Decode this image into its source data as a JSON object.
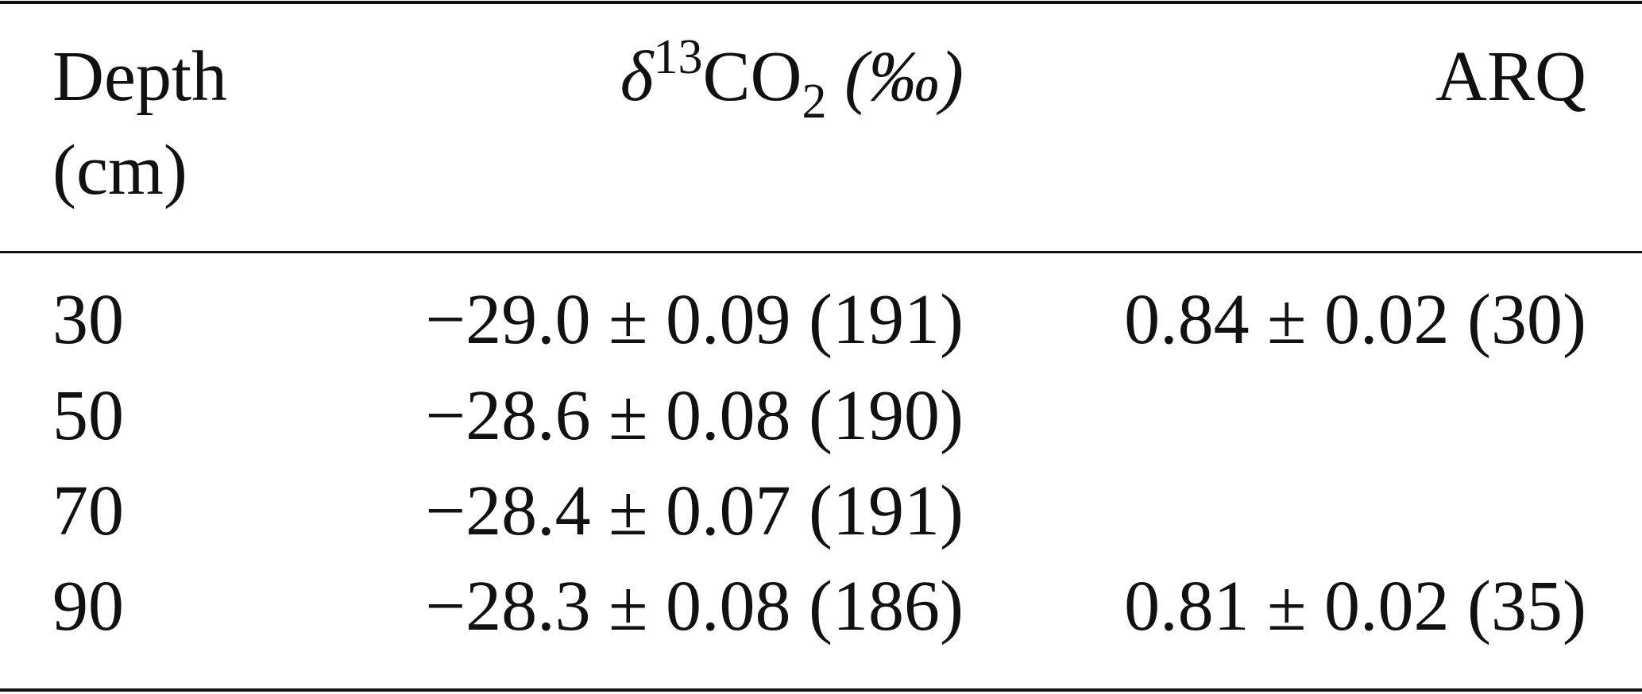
{
  "table": {
    "headers": {
      "depth": "Depth (cm)",
      "delta": {
        "symbol": "δ",
        "sup": "13",
        "base": "CO",
        "sub": "2",
        "unit": "(‰)"
      },
      "arq": "ARQ"
    },
    "rows": [
      [
        "30",
        "−29.0 ± 0.09 (191)",
        "0.84 ± 0.02 (30)"
      ],
      [
        "50",
        "−28.6 ± 0.08 (190)",
        null
      ],
      [
        "70",
        "−28.4 ± 0.07 (191)",
        null
      ],
      [
        "90",
        "−28.3 ± 0.08 (186)",
        "0.81 ± 0.02 (35)"
      ]
    ]
  }
}
